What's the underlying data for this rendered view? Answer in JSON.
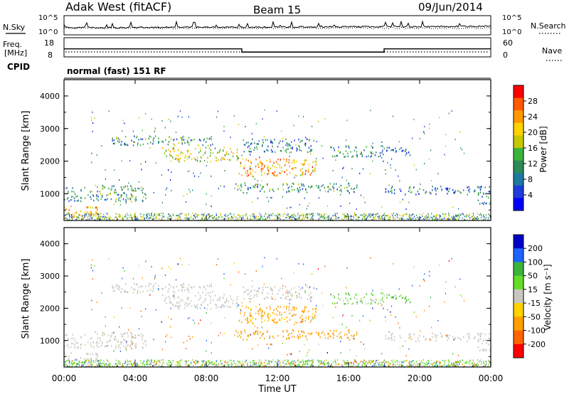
{
  "header": {
    "title": "Adak West (fitACF)",
    "beam": "Beam 15",
    "date": "09/Jun/2014"
  },
  "top_panels": {
    "nsky_label": "N.Sky",
    "nsearch_label": "N.Search",
    "freq_label": "Freq.",
    "freq_unit": "[MHz]",
    "nave_label": "Nave",
    "cpid_label": "CPID",
    "cpid_text": "normal (fast) 151 RF",
    "noise_left_ticks": [
      "10^5",
      "10^0"
    ],
    "noise_right_ticks": [
      "10^5",
      "10^0"
    ],
    "freq_ticks": [
      "18",
      "8"
    ],
    "nave_ticks": [
      "60",
      "0"
    ]
  },
  "power_colorbar": {
    "label": "Power [dB]",
    "ticks": [
      "28",
      "24",
      "20",
      "16",
      "12",
      "8",
      "4"
    ],
    "colors": [
      "#ff0000",
      "#ff5a00",
      "#ff9900",
      "#ffd400",
      "#c8c800",
      "#3cb43c",
      "#2e8b57",
      "#1e78a0",
      "#1e3cdc",
      "#0000ff"
    ]
  },
  "velocity_colorbar": {
    "label": "Velocity [m s⁻¹]",
    "ticks": [
      "200",
      "100",
      "50",
      "15",
      "-15",
      "-50",
      "-100",
      "-200"
    ],
    "colors": [
      "#0000c8",
      "#1e64ff",
      "#3cb43c",
      "#64dc28",
      "#c8c8c0",
      "#ffd200",
      "#ffa000",
      "#ff6400",
      "#ff0000"
    ]
  },
  "chart_data": {
    "type": "heatmap",
    "x_ticks": [
      "00:00",
      "04:00",
      "08:00",
      "12:00",
      "16:00",
      "20:00",
      "00:00"
    ],
    "xlabel": "Time UT",
    "ylabel": "Slant Range [km]",
    "y_ticks": [
      "1000",
      "2000",
      "3000",
      "4000"
    ],
    "x_range_hours": [
      0,
      24
    ],
    "y_range_km": [
      180,
      4500
    ],
    "frequency_mhz": [
      {
        "t0": 0,
        "t1": 10,
        "value": 12.2
      },
      {
        "t0": 10,
        "t1": 18,
        "value": 10.5
      },
      {
        "t0": 18,
        "t1": 24,
        "value": 12.2
      }
    ],
    "scatter_regions": [
      {
        "t0": 0.0,
        "t1": 2.0,
        "r0": 250,
        "r1": 650,
        "power_db": 22,
        "velocity": 0
      },
      {
        "t0": 0.0,
        "t1": 4.6,
        "r0": 780,
        "r1": 1280,
        "power_db": 10,
        "velocity": 0
      },
      {
        "t0": 2.7,
        "t1": 8.5,
        "r0": 2500,
        "r1": 2800,
        "power_db": 10,
        "velocity": 0
      },
      {
        "t0": 5.5,
        "t1": 9.8,
        "r0": 2000,
        "r1": 2450,
        "power_db": 18,
        "velocity": 0
      },
      {
        "t0": 9.8,
        "t1": 14.2,
        "r0": 1550,
        "r1": 2100,
        "power_db": 22,
        "velocity": -40
      },
      {
        "t0": 9.6,
        "t1": 16.5,
        "r0": 1050,
        "r1": 1350,
        "power_db": 10,
        "velocity": -60
      },
      {
        "t0": 10.0,
        "t1": 14.0,
        "r0": 2300,
        "r1": 2700,
        "power_db": 8,
        "velocity": 0
      },
      {
        "t0": 15.0,
        "t1": 18.0,
        "r0": 2150,
        "r1": 2500,
        "power_db": 9,
        "velocity": 20
      },
      {
        "t0": 17.8,
        "t1": 19.5,
        "r0": 2200,
        "r1": 2450,
        "power_db": 8,
        "velocity": 30
      },
      {
        "t0": 18.0,
        "t1": 24.0,
        "r0": 1000,
        "r1": 1250,
        "power_db": 7,
        "velocity": 0
      },
      {
        "t0": 23.2,
        "t1": 24.0,
        "r0": 700,
        "r1": 1000,
        "power_db": 8,
        "velocity": 0
      }
    ]
  }
}
